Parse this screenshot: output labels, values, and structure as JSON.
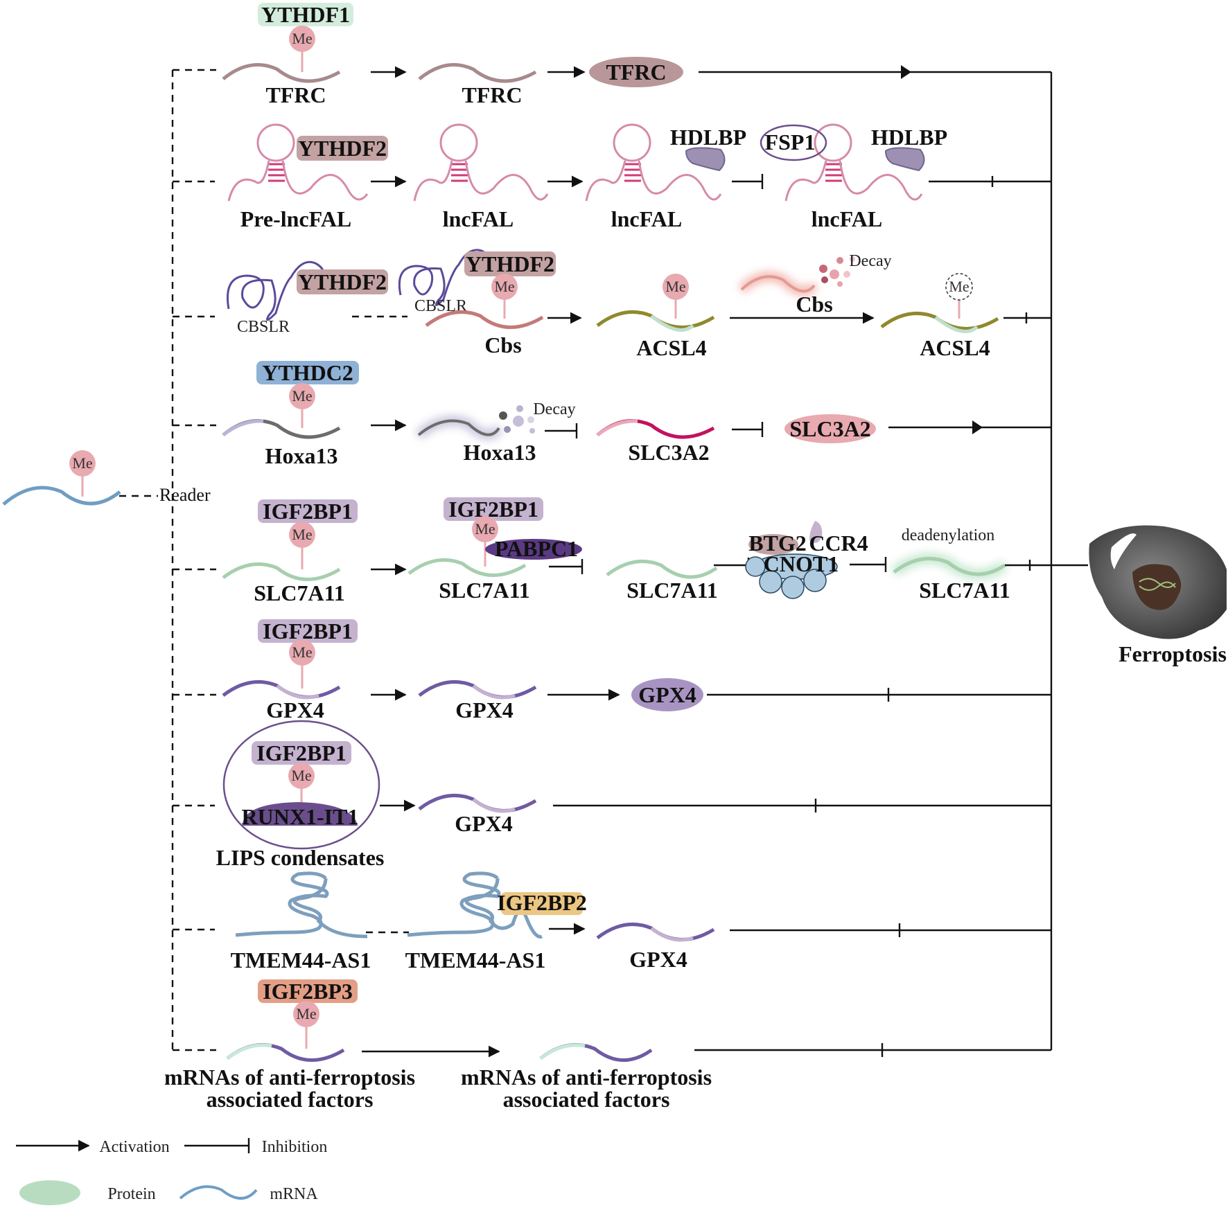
{
  "colors": {
    "me_circle": "#e8a9b0",
    "ythdf1": "#d4ecdc",
    "ythdf2": "#c3a2a3",
    "ythdc2": "#8fb1d6",
    "igf2bp1": "#c4b2cf",
    "igf2bp2": "#ecc683",
    "igf2bp3": "#e39e86",
    "protein_legend": "#b8dcc0",
    "mrna_legend": "#6f9ec4"
  },
  "icons": {
    "rna_wave": "mrna-wave-icon",
    "hairpin": "lncrna-hairpin-icon",
    "cell": "ferroptotic-cell-icon",
    "dna": "dna-icon",
    "decay": "decay-dots-icon"
  },
  "source": {
    "me": "Me",
    "reader": "Reader"
  },
  "me_label": "Me",
  "rows": {
    "tfrc": {
      "reader": "YTHDF1",
      "rna1": "TFRC",
      "rna2": "TFRC",
      "protein": "TFRC"
    },
    "lncfal": {
      "reader": "YTHDF2",
      "rna1": "Pre-lncFAL",
      "rna2": "lncFAL",
      "rna3": "lncFAL",
      "hdlbp1": "HDLBP",
      "rna4": "lncFAL",
      "fsp1": "FSP1",
      "hdlbp2": "HDLBP"
    },
    "cbs": {
      "reader1": "YTHDF2",
      "cbslr1": "CBSLR",
      "reader2": "YTHDF2",
      "cbslr2": "CBSLR",
      "rna1": "Cbs",
      "rna2": "ACSL4",
      "decay": "Decay",
      "cbs_decayed": "Cbs",
      "rna3": "ACSL4"
    },
    "hoxa13": {
      "reader": "YTHDC2",
      "rna1": "Hoxa13",
      "decay": "Decay",
      "rna2": "Hoxa13",
      "rna3": "SLC3A2",
      "protein": "SLC3A2"
    },
    "slc7a11": {
      "reader1": "IGF2BP1",
      "rna1": "SLC7A11",
      "reader2": "IGF2BP1",
      "pabpc1": "PABPC1",
      "rna2": "SLC7A11",
      "rna3": "SLC7A11",
      "btg2": "BTG2",
      "ccr4": "CCR4",
      "cnot1": "CNOT1",
      "deadenylation": "deadenylation",
      "rna4": "SLC7A11"
    },
    "gpx4": {
      "reader": "IGF2BP1",
      "rna1": "GPX4",
      "rna2": "GPX4",
      "protein": "GPX4"
    },
    "lips": {
      "reader": "IGF2BP1",
      "runx": "RUNX1-IT1",
      "label": "LIPS condensates",
      "rna": "GPX4"
    },
    "tmem": {
      "rna1": "TMEM44-AS1",
      "reader": "IGF2BP2",
      "rna2": "TMEM44-AS1",
      "rna3": "GPX4"
    },
    "anti": {
      "reader": "IGF2BP3",
      "rna1_l1": "mRNAs of anti-ferroptosis",
      "rna1_l2": "associated factors",
      "rna2_l1": "mRNAs of anti-ferroptosis",
      "rna2_l2": "associated factors"
    }
  },
  "outcome": "Ferroptosis",
  "legend": {
    "activation": "Activation",
    "inhibition": "Inhibition",
    "protein": "Protein",
    "mrna": "mRNA"
  }
}
